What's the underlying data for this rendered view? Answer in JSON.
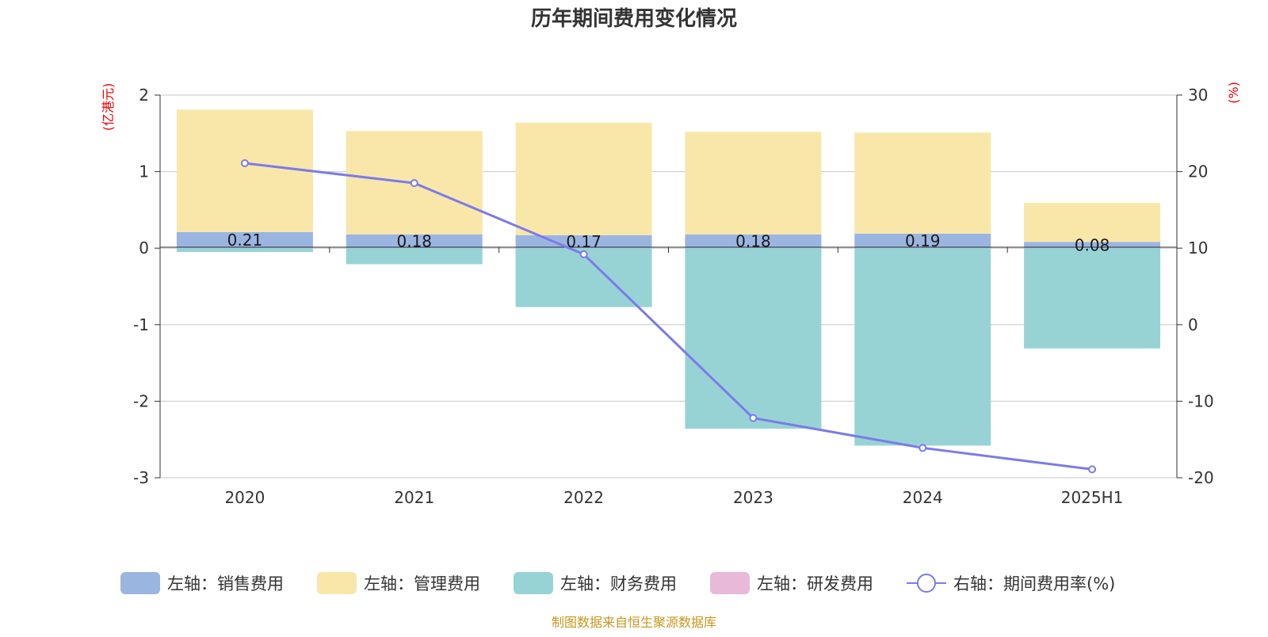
{
  "chart_data": {
    "type": "bar",
    "title": "历年期间费用变化情况",
    "categories": [
      "2020",
      "2021",
      "2022",
      "2023",
      "2024",
      "2025H1"
    ],
    "left_axis": {
      "unit": "(亿港元)",
      "ylim": [
        -3,
        2
      ],
      "ticks": [
        "-3",
        "-2",
        "-1",
        "0",
        "1",
        "2"
      ]
    },
    "right_axis": {
      "unit": "(%)",
      "ylim": [
        -20,
        30
      ],
      "ticks": [
        "-20",
        "-10",
        "0",
        "10",
        "20",
        "30"
      ]
    },
    "series": [
      {
        "name": "左轴：销售费用",
        "type": "bar",
        "axis": "left",
        "color": "#9bb5e1",
        "values": [
          0.21,
          0.18,
          0.17,
          0.18,
          0.19,
          0.08
        ],
        "labels": [
          "0.21",
          "0.18",
          "0.17",
          "0.18",
          "0.19",
          "0.08"
        ]
      },
      {
        "name": "左轴：管理费用",
        "type": "bar",
        "axis": "left",
        "color": "#f8e7a8",
        "values": [
          1.6,
          1.35,
          1.47,
          1.34,
          1.32,
          0.51
        ]
      },
      {
        "name": "左轴：财务费用",
        "type": "bar",
        "axis": "left",
        "color": "#97d3d4",
        "values": [
          -0.05,
          -0.21,
          -0.77,
          -2.36,
          -2.58,
          -1.31
        ]
      },
      {
        "name": "左轴：研发费用",
        "type": "bar",
        "axis": "left",
        "color": "#e8b9d9",
        "values": [
          0,
          0,
          0,
          0,
          0,
          0
        ]
      },
      {
        "name": "右轴：期间费用率(%)",
        "type": "line",
        "axis": "right",
        "color": "#7b7bea",
        "values": [
          21.1,
          18.5,
          9.2,
          -12.2,
          -16.1,
          -18.9
        ]
      }
    ],
    "grid": true,
    "legend": "bottom"
  },
  "source": "制图数据来自恒生聚源数据库"
}
